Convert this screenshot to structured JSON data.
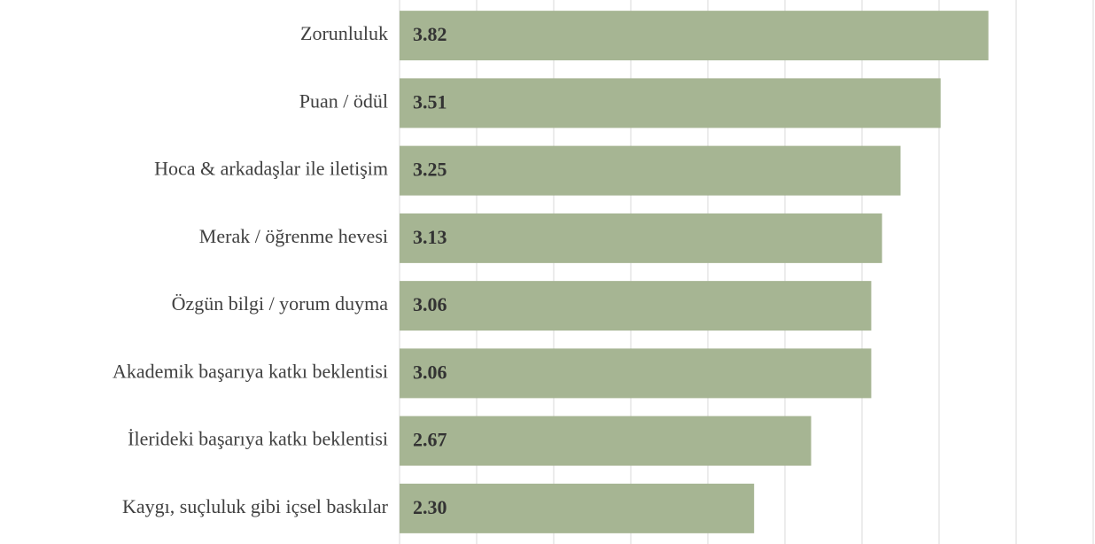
{
  "chart_data": {
    "type": "bar",
    "orientation": "horizontal",
    "categories": [
      "Zorunluluk",
      "Puan / ödül",
      "Hoca & arkadaşlar ile iletişim",
      "Merak / öğrenme hevesi",
      "Özgün bilgi / yorum duyma",
      "Akademik başarıya katkı beklentisi",
      "İlerideki başarıya katkı beklentisi",
      "Kaygı, suçluluk gibi içsel baskılar"
    ],
    "values": [
      3.82,
      3.51,
      3.25,
      3.13,
      3.06,
      3.06,
      2.67,
      2.3
    ],
    "value_labels": [
      "3.82",
      "3.51",
      "3.25",
      "3.13",
      "3.06",
      "3.06",
      "2.67",
      "2.30"
    ],
    "color": "#a6b593",
    "xlim": [
      0,
      4.5
    ],
    "xticks": [
      0,
      0.5,
      1,
      1.5,
      2,
      2.5,
      3,
      3.5,
      4,
      4.5
    ],
    "grid": true
  }
}
